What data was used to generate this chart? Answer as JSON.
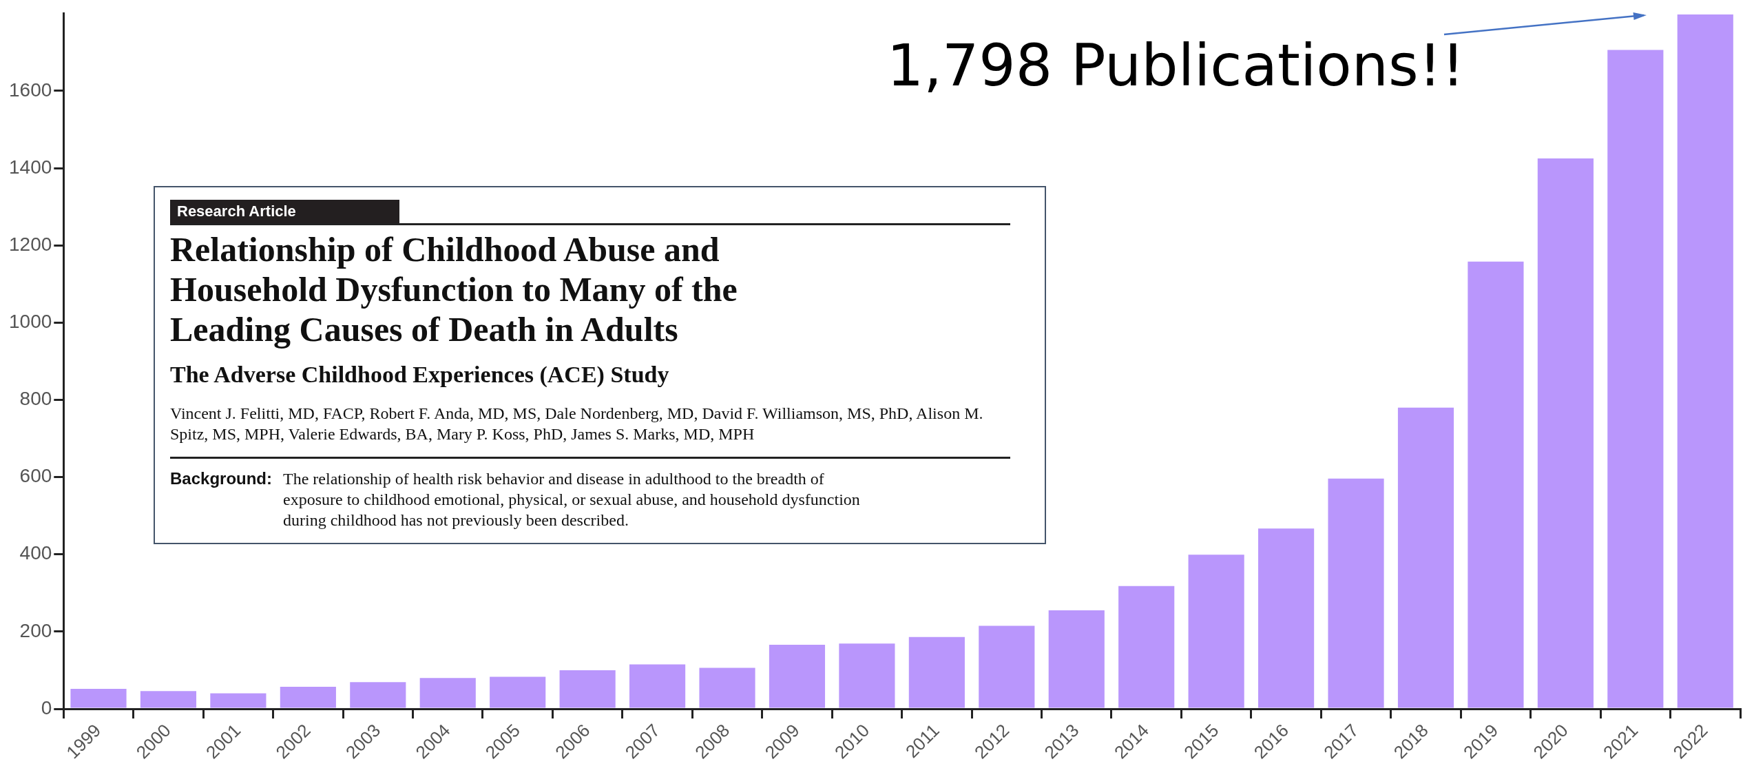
{
  "chart_data": {
    "type": "bar",
    "categories": [
      "1999",
      "2000",
      "2001",
      "2002",
      "2003",
      "2004",
      "2005",
      "2006",
      "2007",
      "2008",
      "2009",
      "2010",
      "2011",
      "2012",
      "2013",
      "2014",
      "2015",
      "2016",
      "2017",
      "2018",
      "2019",
      "2020",
      "2021",
      "2022"
    ],
    "values": [
      52,
      46,
      40,
      57,
      69,
      80,
      83,
      100,
      115,
      106,
      166,
      169,
      186,
      215,
      255,
      318,
      399,
      467,
      596,
      780,
      1158,
      1425,
      1706,
      1798
    ],
    "color": "#b996fc",
    "ylim": [
      0,
      1800
    ],
    "yticks": [
      0,
      200,
      400,
      600,
      800,
      1000,
      1200,
      1400,
      1600
    ],
    "grid": false,
    "legend": false,
    "annotations": [
      "1,798 Publications!!",
      "Research Article",
      "Relationship of Childhood Abuse and Household Dysfunction to Many of the Leading Causes of Death in Adults",
      "The Adverse Childhood Experiences (ACE) Study",
      "Vincent J. Felitti, MD, FACP, Robert F. Anda, MD, MS, Dale Nordenberg, MD, David F. Williamson, MS, PhD, Alison M. Spitz, MS, MPH, Valerie Edwards, BA, Mary P. Koss, PhD, James S. Marks, MD, MPH",
      "Background:",
      "The relationship of health risk behavior and disease in adulthood to the breadth of exposure to childhood emotional, physical, or sexual abuse, and household dysfunction during childhood has not previously been described."
    ]
  }
}
